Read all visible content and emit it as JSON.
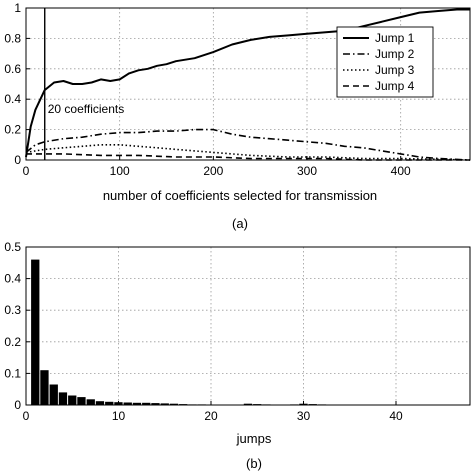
{
  "chart_data": [
    {
      "type": "line",
      "panel_caption": "(a)",
      "xlabel": "number of coefficients selected for transmission",
      "ylabel": "",
      "xlim": [
        0,
        474
      ],
      "ylim": [
        0,
        1
      ],
      "xticks": [
        0,
        100,
        200,
        300,
        400
      ],
      "yticks": [
        0,
        0.2,
        0.4,
        0.6,
        0.8,
        1
      ],
      "ytick_labels": [
        "0",
        "0.2",
        "0.4",
        "0.6",
        "0.8",
        "1"
      ],
      "grid": true,
      "legend_position": "top-right",
      "annotation": {
        "text": "20 coefficients",
        "x": 20
      },
      "series": [
        {
          "name": "Jump 1",
          "dash": "solid",
          "x": [
            0,
            5,
            10,
            20,
            30,
            40,
            50,
            60,
            70,
            80,
            90,
            100,
            110,
            120,
            130,
            140,
            150,
            160,
            180,
            200,
            220,
            240,
            260,
            280,
            300,
            320,
            340,
            360,
            380,
            400,
            420,
            440,
            460,
            474
          ],
          "y": [
            0.02,
            0.22,
            0.33,
            0.46,
            0.51,
            0.52,
            0.5,
            0.5,
            0.51,
            0.53,
            0.52,
            0.53,
            0.57,
            0.59,
            0.6,
            0.62,
            0.63,
            0.65,
            0.67,
            0.71,
            0.76,
            0.79,
            0.81,
            0.82,
            0.83,
            0.84,
            0.85,
            0.88,
            0.91,
            0.94,
            0.97,
            0.98,
            0.99,
            0.99
          ]
        },
        {
          "name": "Jump 2",
          "dash": "dashdot",
          "x": [
            0,
            10,
            20,
            40,
            60,
            80,
            100,
            120,
            140,
            160,
            180,
            200,
            220,
            240,
            260,
            280,
            300,
            320,
            340,
            360,
            380,
            400,
            420,
            440,
            474
          ],
          "y": [
            0.05,
            0.1,
            0.12,
            0.14,
            0.15,
            0.17,
            0.18,
            0.18,
            0.19,
            0.19,
            0.2,
            0.2,
            0.17,
            0.15,
            0.14,
            0.13,
            0.12,
            0.11,
            0.09,
            0.08,
            0.06,
            0.04,
            0.02,
            0.01,
            0.0
          ]
        },
        {
          "name": "Jump 3",
          "dash": "dotted",
          "x": [
            0,
            10,
            20,
            40,
            60,
            80,
            100,
            120,
            140,
            160,
            180,
            200,
            240,
            280,
            320,
            360,
            400,
            474
          ],
          "y": [
            0.05,
            0.06,
            0.07,
            0.08,
            0.09,
            0.1,
            0.1,
            0.09,
            0.08,
            0.07,
            0.06,
            0.05,
            0.03,
            0.02,
            0.02,
            0.01,
            0.01,
            0.0
          ]
        },
        {
          "name": "Jump 4",
          "dash": "dashed",
          "x": [
            0,
            10,
            20,
            40,
            80,
            120,
            160,
            200,
            240,
            280,
            320,
            360,
            400,
            474
          ],
          "y": [
            0.04,
            0.04,
            0.04,
            0.04,
            0.03,
            0.03,
            0.02,
            0.02,
            0.01,
            0.01,
            0.01,
            0.0,
            0.0,
            0.0
          ]
        }
      ]
    },
    {
      "type": "bar",
      "panel_caption": "(b)",
      "xlabel": "jumps",
      "ylabel": "",
      "xlim": [
        0,
        48
      ],
      "ylim": [
        0,
        0.5
      ],
      "xticks": [
        0,
        10,
        20,
        30,
        40
      ],
      "yticks": [
        0,
        0.1,
        0.2,
        0.3,
        0.4,
        0.5
      ],
      "ytick_labels": [
        "0",
        "0.1",
        "0.2",
        "0.3",
        "0.4",
        "0.5"
      ],
      "grid": true,
      "categories": [
        1,
        2,
        3,
        4,
        5,
        6,
        7,
        8,
        9,
        10,
        11,
        12,
        13,
        14,
        15,
        16,
        17,
        18,
        19,
        20,
        21,
        22,
        23,
        24,
        25,
        26,
        27,
        28,
        29,
        30,
        31,
        32,
        33,
        34,
        35,
        36,
        37,
        38,
        39,
        40,
        41,
        42,
        43,
        44,
        45,
        46,
        47
      ],
      "values": [
        0.46,
        0.11,
        0.065,
        0.04,
        0.03,
        0.025,
        0.018,
        0.012,
        0.01,
        0.009,
        0.008,
        0.007,
        0.007,
        0.006,
        0.005,
        0.004,
        0.003,
        0.002,
        0.002,
        0.001,
        0.001,
        0.001,
        0.001,
        0.004,
        0.003,
        0.002,
        0.001,
        0.001,
        0.002,
        0.004,
        0.003,
        0.002,
        0.001,
        0.001,
        0.001,
        0.0,
        0.0,
        0.0,
        0.0,
        0.0,
        0.0,
        0.0,
        0.0,
        0.0,
        0.0,
        0.0,
        0.0
      ]
    }
  ]
}
